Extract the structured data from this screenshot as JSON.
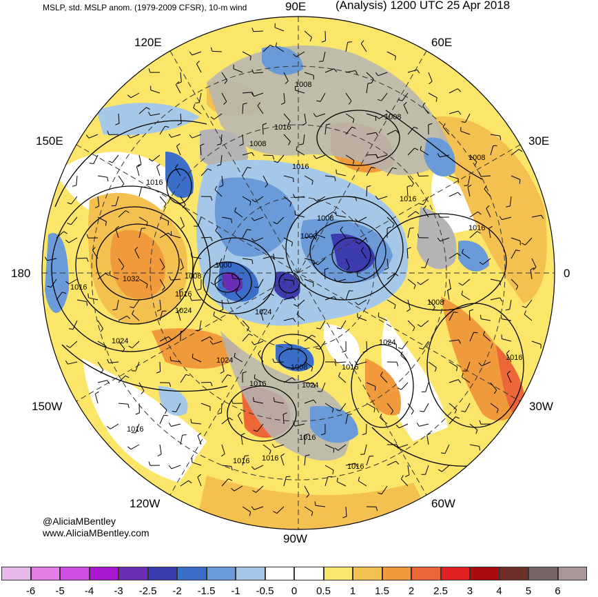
{
  "title_left": "MSLP, std. MSLP anom. (1979-2009 CFSR), 10-m wind",
  "title_right": "(Analysis) 1200 UTC 25 Apr 2018",
  "longitude_labels": {
    "lon_90e": "90E",
    "lon_60e": "60E",
    "lon_120e": "120E",
    "lon_30e": "30E",
    "lon_150e": "150E",
    "lon_180": "180",
    "lon_0": "0",
    "lon_150w": "150W",
    "lon_30w": "30W",
    "lon_120w": "120W",
    "lon_60w": "60W",
    "lon_90w": "90W"
  },
  "credits": {
    "twitter": "@AliciaMBentley",
    "website": "www.AliciaMBentley.com"
  },
  "isobar_labels": [
    "1008",
    "1016",
    "1008",
    "1016",
    "1016",
    "1008",
    "1016",
    "1008",
    "1016",
    "1000",
    "1008",
    "1000",
    "1032",
    "1016",
    "1016",
    "1008",
    "1024",
    "1024",
    "1008",
    "1024",
    "1024",
    "1024",
    "1016",
    "1008",
    "1016",
    "1016",
    "1024",
    "1016",
    "1016",
    "1016",
    "1016",
    "1016"
  ],
  "colorbar": {
    "labels": [
      "-6",
      "-5",
      "-4",
      "-3",
      "-2.5",
      "-2",
      "-1.5",
      "-1",
      "-0.5",
      "0",
      "0.5",
      "1",
      "1.5",
      "2",
      "2.5",
      "3",
      "4",
      "5",
      "6"
    ],
    "colors": [
      "#eab8ea",
      "#e27ee6",
      "#cd4ee0",
      "#a818d0",
      "#6a2eb4",
      "#3c3cb0",
      "#3a6ec8",
      "#6b9ad8",
      "#a6c8e8",
      "#ffffff",
      "#ffffff",
      "#fbe66a",
      "#f4c150",
      "#f09a3c",
      "#ec6638",
      "#e02020",
      "#a80c0c",
      "#6e2e2a",
      "#756666",
      "#a89898"
    ]
  },
  "highs_lows_note": "",
  "accent_colors": {
    "land_gray": "#b4b4b4",
    "contour": "#000000"
  }
}
